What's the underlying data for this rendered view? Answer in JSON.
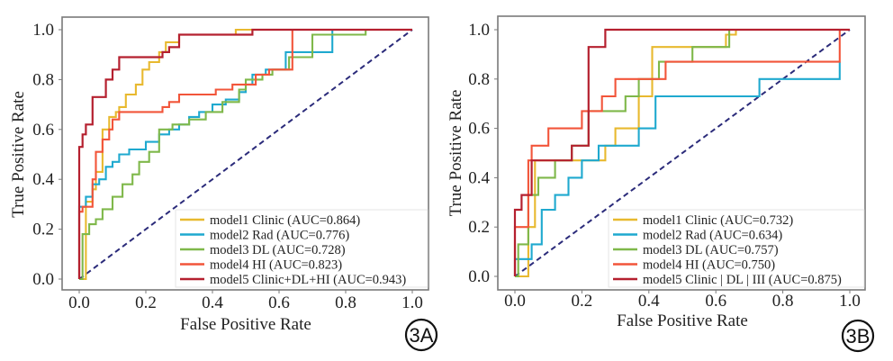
{
  "chart_data": [
    {
      "type": "line",
      "panel_label": "3A",
      "title": "",
      "xlabel": "False Positive Rate",
      "ylabel": "True Positive Rate",
      "xlim": [
        -0.05,
        1.05
      ],
      "ylim": [
        -0.05,
        1.05
      ],
      "xticks": [
        "0.0",
        "0.2",
        "0.4",
        "0.6",
        "0.8",
        "1.0"
      ],
      "yticks": [
        "0.0",
        "0.2",
        "0.4",
        "0.6",
        "0.8",
        "1.0"
      ],
      "grid": false,
      "legend_position": "lower-right",
      "reference_line": {
        "name": "chance",
        "x": [
          0,
          1
        ],
        "y": [
          0,
          1
        ],
        "color": "#2b2b7a",
        "style": "dashed"
      },
      "series": [
        {
          "name": "model1 Clinic (AUC=0.864)",
          "color": "#e8b92f",
          "x": [
            0,
            0.02,
            0.02,
            0.04,
            0.04,
            0.05,
            0.05,
            0.07,
            0.07,
            0.09,
            0.09,
            0.11,
            0.11,
            0.12,
            0.12,
            0.14,
            0.14,
            0.17,
            0.17,
            0.19,
            0.19,
            0.21,
            0.21,
            0.24,
            0.24,
            0.26,
            0.26,
            0.3,
            0.3,
            0.47,
            0.47,
            1.0
          ],
          "y": [
            0,
            0,
            0.31,
            0.31,
            0.36,
            0.36,
            0.43,
            0.43,
            0.6,
            0.6,
            0.65,
            0.65,
            0.67,
            0.67,
            0.69,
            0.69,
            0.74,
            0.74,
            0.78,
            0.78,
            0.84,
            0.84,
            0.87,
            0.87,
            0.91,
            0.91,
            0.95,
            0.95,
            0.98,
            0.98,
            1.0,
            1.0
          ]
        },
        {
          "name": "model2 Rad (AUC=0.776)",
          "color": "#1fa9cf",
          "x": [
            0,
            0,
            0.02,
            0.02,
            0.04,
            0.04,
            0.06,
            0.06,
            0.08,
            0.08,
            0.1,
            0.1,
            0.12,
            0.12,
            0.15,
            0.15,
            0.2,
            0.2,
            0.24,
            0.24,
            0.27,
            0.27,
            0.3,
            0.3,
            0.33,
            0.33,
            0.36,
            0.36,
            0.4,
            0.4,
            0.44,
            0.44,
            0.48,
            0.48,
            0.5,
            0.5,
            0.52,
            0.52,
            0.56,
            0.56,
            0.62,
            0.62,
            0.76,
            0.76,
            1.0
          ],
          "y": [
            0,
            0.29,
            0.29,
            0.33,
            0.33,
            0.38,
            0.38,
            0.4,
            0.4,
            0.45,
            0.45,
            0.47,
            0.47,
            0.5,
            0.5,
            0.52,
            0.52,
            0.55,
            0.55,
            0.58,
            0.58,
            0.6,
            0.6,
            0.62,
            0.62,
            0.65,
            0.65,
            0.67,
            0.67,
            0.7,
            0.7,
            0.72,
            0.72,
            0.75,
            0.75,
            0.78,
            0.78,
            0.82,
            0.82,
            0.84,
            0.84,
            0.91,
            0.91,
            1.0,
            1.0
          ]
        },
        {
          "name": "model3 DL (AUC=0.728)",
          "color": "#7fb84a",
          "x": [
            0,
            0.01,
            0.01,
            0.03,
            0.03,
            0.05,
            0.05,
            0.07,
            0.07,
            0.1,
            0.1,
            0.13,
            0.13,
            0.16,
            0.16,
            0.18,
            0.18,
            0.21,
            0.21,
            0.24,
            0.24,
            0.28,
            0.28,
            0.33,
            0.33,
            0.38,
            0.38,
            0.43,
            0.43,
            0.48,
            0.48,
            0.5,
            0.5,
            0.55,
            0.55,
            0.58,
            0.58,
            0.63,
            0.63,
            0.7,
            0.7,
            0.86,
            0.86,
            1.0
          ],
          "y": [
            0,
            0,
            0.18,
            0.18,
            0.22,
            0.22,
            0.24,
            0.24,
            0.28,
            0.28,
            0.33,
            0.33,
            0.38,
            0.38,
            0.42,
            0.42,
            0.47,
            0.47,
            0.51,
            0.51,
            0.6,
            0.6,
            0.62,
            0.62,
            0.64,
            0.64,
            0.67,
            0.67,
            0.71,
            0.71,
            0.76,
            0.76,
            0.8,
            0.8,
            0.82,
            0.82,
            0.84,
            0.84,
            0.89,
            0.89,
            0.98,
            0.98,
            1.0,
            1.0
          ]
        },
        {
          "name": "model4 HI (AUC=0.823)",
          "color": "#f2553a",
          "x": [
            0,
            0,
            0.01,
            0.01,
            0.04,
            0.04,
            0.05,
            0.05,
            0.07,
            0.07,
            0.09,
            0.09,
            0.1,
            0.1,
            0.12,
            0.12,
            0.25,
            0.25,
            0.27,
            0.27,
            0.3,
            0.3,
            0.41,
            0.41,
            0.46,
            0.46,
            0.53,
            0.53,
            0.57,
            0.57,
            0.64,
            0.64,
            1.0
          ],
          "y": [
            0,
            0.27,
            0.27,
            0.29,
            0.29,
            0.4,
            0.4,
            0.51,
            0.51,
            0.56,
            0.56,
            0.6,
            0.6,
            0.64,
            0.64,
            0.67,
            0.67,
            0.69,
            0.69,
            0.71,
            0.71,
            0.74,
            0.74,
            0.76,
            0.76,
            0.78,
            0.78,
            0.82,
            0.82,
            0.84,
            0.84,
            1.0,
            1.0
          ]
        },
        {
          "name": "model5 Clinic+DL+HI (AUC=0.943)",
          "color": "#b5202f",
          "x": [
            0,
            0,
            0.01,
            0.01,
            0.02,
            0.02,
            0.04,
            0.04,
            0.08,
            0.08,
            0.1,
            0.1,
            0.12,
            0.12,
            0.25,
            0.25,
            0.27,
            0.27,
            0.3,
            0.3,
            0.52,
            0.52,
            1.0
          ],
          "y": [
            0,
            0.53,
            0.53,
            0.58,
            0.58,
            0.62,
            0.62,
            0.73,
            0.73,
            0.8,
            0.8,
            0.84,
            0.84,
            0.89,
            0.89,
            0.91,
            0.91,
            0.93,
            0.93,
            0.98,
            0.98,
            1.0,
            1.0
          ]
        }
      ]
    },
    {
      "type": "line",
      "panel_label": "3B",
      "title": "",
      "xlabel": "False Positive Rate",
      "ylabel": "True Positive Rate",
      "xlim": [
        -0.05,
        1.05
      ],
      "ylim": [
        -0.05,
        1.05
      ],
      "xticks": [
        "0.0",
        "0.2",
        "0.4",
        "0.6",
        "0.8",
        "1.0"
      ],
      "yticks": [
        "0.0",
        "0.2",
        "0.4",
        "0.6",
        "0.8",
        "1.0"
      ],
      "grid": false,
      "legend_position": "lower-right",
      "reference_line": {
        "name": "chance",
        "x": [
          0,
          1
        ],
        "y": [
          0,
          1
        ],
        "color": "#2b2b7a",
        "style": "dashed"
      },
      "series": [
        {
          "name": "model1 Clinic (AUC=0.732)",
          "color": "#e8b92f",
          "x": [
            0,
            0.04,
            0.04,
            0.06,
            0.06,
            0.27,
            0.27,
            0.3,
            0.3,
            0.37,
            0.37,
            0.41,
            0.41,
            0.63,
            0.63,
            0.66,
            0.66,
            1.0
          ],
          "y": [
            0,
            0,
            0.2,
            0.2,
            0.47,
            0.47,
            0.53,
            0.53,
            0.6,
            0.6,
            0.73,
            0.73,
            0.93,
            0.93,
            0.98,
            0.98,
            1.0,
            1.0
          ]
        },
        {
          "name": "model2 Rad (AUC=0.634)",
          "color": "#1fa9cf",
          "x": [
            0,
            0,
            0.05,
            0.05,
            0.08,
            0.08,
            0.12,
            0.12,
            0.16,
            0.16,
            0.2,
            0.2,
            0.25,
            0.25,
            0.37,
            0.37,
            0.42,
            0.42,
            0.73,
            0.73,
            0.97,
            0.97
          ],
          "y": [
            0,
            0.07,
            0.07,
            0.13,
            0.13,
            0.27,
            0.27,
            0.33,
            0.33,
            0.4,
            0.4,
            0.47,
            0.47,
            0.53,
            0.53,
            0.6,
            0.6,
            0.73,
            0.73,
            0.8,
            0.8,
            0.87
          ]
        },
        {
          "name": "model3 DL (AUC=0.757)",
          "color": "#7fb84a",
          "x": [
            0,
            0.01,
            0.01,
            0.04,
            0.04,
            0.07,
            0.07,
            0.12,
            0.12,
            0.17,
            0.17,
            0.22,
            0.22,
            0.33,
            0.33,
            0.37,
            0.37,
            0.43,
            0.43,
            0.53,
            0.53,
            0.64,
            0.64,
            0.68,
            0.68,
            1.0
          ],
          "y": [
            0,
            0,
            0.13,
            0.13,
            0.33,
            0.33,
            0.4,
            0.4,
            0.47,
            0.47,
            0.53,
            0.53,
            0.67,
            0.67,
            0.73,
            0.73,
            0.8,
            0.8,
            0.87,
            0.87,
            0.93,
            0.93,
            1.0,
            1.0,
            1.0,
            1.0
          ]
        },
        {
          "name": "model4 HI (AUC=0.750)",
          "color": "#f2553a",
          "x": [
            0,
            0,
            0.04,
            0.04,
            0.05,
            0.05,
            0.1,
            0.1,
            0.2,
            0.2,
            0.26,
            0.26,
            0.3,
            0.3,
            0.45,
            0.45,
            0.5,
            0.5,
            0.97,
            0.97
          ],
          "y": [
            0,
            0.2,
            0.2,
            0.47,
            0.47,
            0.53,
            0.53,
            0.6,
            0.6,
            0.67,
            0.67,
            0.73,
            0.73,
            0.8,
            0.8,
            0.87,
            0.87,
            0.87,
            0.87,
            1.0
          ]
        },
        {
          "name": "model5 Clinic+DL+HI (AUC=0.875)",
          "legend_label": "model5 Clinic | DL | III (AUC=0.875)",
          "color": "#b5202f",
          "x": [
            0,
            0,
            0.02,
            0.02,
            0.05,
            0.05,
            0.08,
            0.08,
            0.17,
            0.17,
            0.22,
            0.22,
            0.27,
            0.27,
            1.0
          ],
          "y": [
            0,
            0.27,
            0.27,
            0.33,
            0.33,
            0.47,
            0.47,
            0.47,
            0.47,
            0.53,
            0.53,
            0.93,
            0.93,
            1.0,
            1.0
          ]
        }
      ]
    }
  ]
}
